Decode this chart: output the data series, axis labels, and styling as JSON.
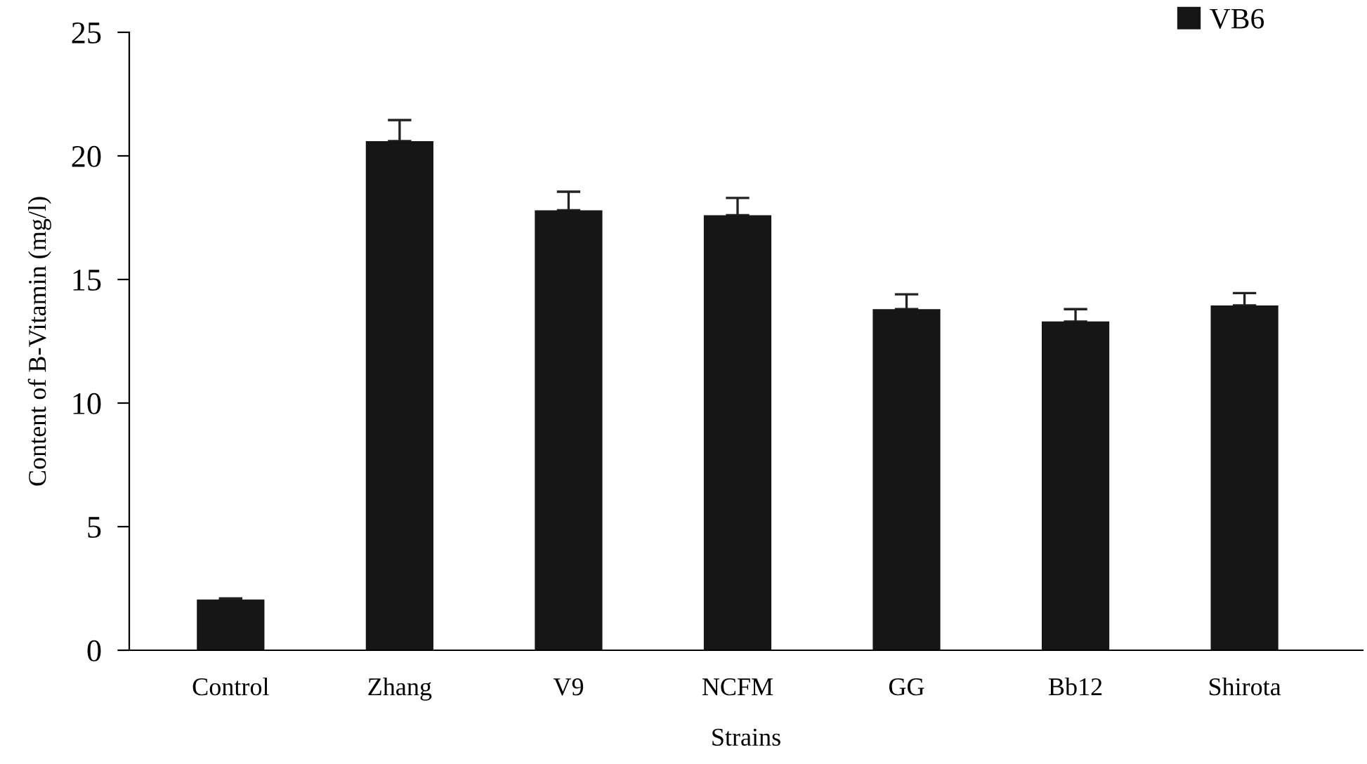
{
  "chart_data": {
    "type": "bar",
    "xlabel": "Strains",
    "ylabel": "Content of B-Vitamin (mg/l)",
    "categories": [
      "Control",
      "Zhang",
      "V9",
      "NCFM",
      "GG",
      "Bb12",
      "Shirota"
    ],
    "series": [
      {
        "name": "VB6",
        "color": "#161616",
        "values": [
          2.05,
          20.6,
          17.8,
          17.6,
          13.8,
          13.3,
          13.95
        ],
        "errors": [
          [
            2.05,
            2.1
          ],
          [
            20.6,
            21.45
          ],
          [
            17.8,
            18.55
          ],
          [
            17.6,
            18.3
          ],
          [
            13.8,
            14.4
          ],
          [
            13.3,
            13.8
          ],
          [
            13.95,
            14.45
          ]
        ]
      }
    ],
    "ylim": [
      0,
      25
    ],
    "yticks": [
      0,
      5,
      10,
      15,
      20,
      25
    ],
    "grid": false,
    "legend": "top right"
  }
}
